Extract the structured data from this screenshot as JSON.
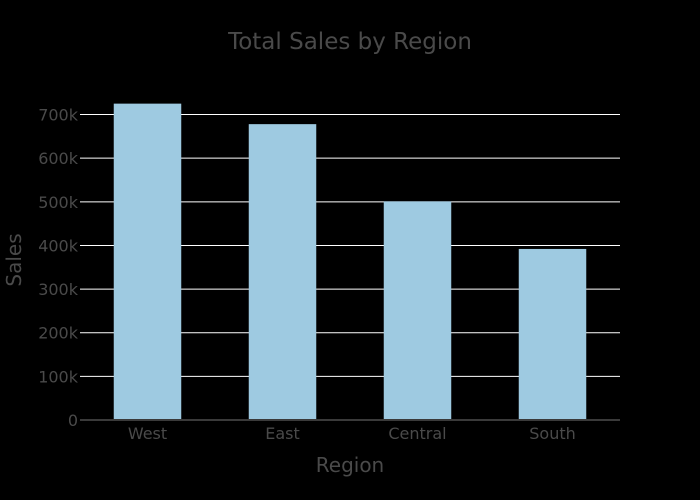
{
  "chart_data": {
    "type": "bar",
    "title": "Total Sales by Region",
    "xlabel": "Region",
    "ylabel": "Sales",
    "categories": [
      "West",
      "East",
      "Central",
      "South"
    ],
    "values": [
      725000,
      678000,
      501000,
      392000
    ],
    "ylim": [
      0,
      770000
    ],
    "yticks": [
      0,
      100000,
      200000,
      300000,
      400000,
      500000,
      600000,
      700000
    ],
    "ytick_labels": [
      "0",
      "100k",
      "200k",
      "300k",
      "400k",
      "500k",
      "600k",
      "700k"
    ],
    "grid": true,
    "legend": "none",
    "colors": {
      "bar": "#9ecae1",
      "background": "#000000",
      "text": "#4a4a4a",
      "grid": "#ffffff"
    }
  }
}
